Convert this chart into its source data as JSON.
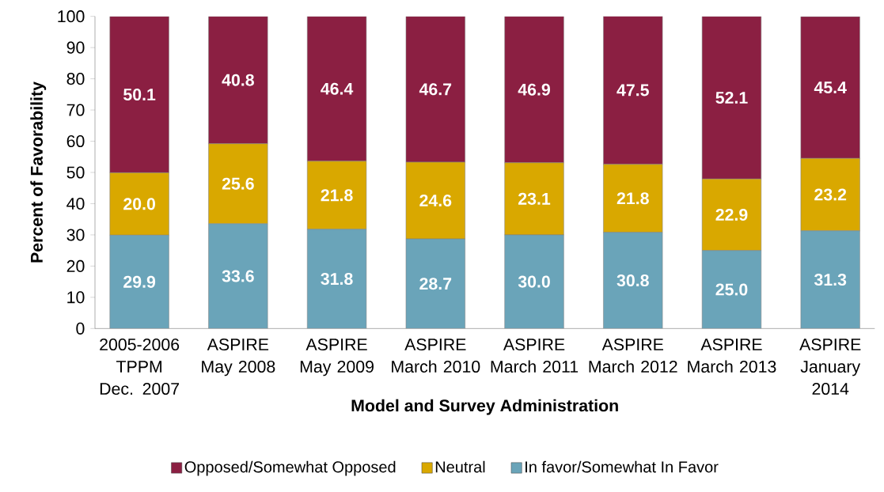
{
  "chart_data": {
    "type": "bar",
    "stacked": true,
    "xlabel": "Model and Survey Administration",
    "ylabel": "Percent of Favorability",
    "categories": [
      "2005-2006 TPPM Dec. 2007",
      "ASPIRE May 2008",
      "ASPIRE May 2009",
      "ASPIRE March 2010",
      "ASPIRE March 2011",
      "ASPIRE March 2012",
      "ASPIRE March 2013",
      "ASPIRE January 2014"
    ],
    "series": [
      {
        "name": "In favor/Somewhat In Favor",
        "color": "#6aa4b9",
        "values": [
          29.9,
          33.6,
          31.8,
          28.7,
          30.0,
          30.8,
          25.0,
          31.3
        ],
        "value_labels": [
          "29.9",
          "33.6",
          "31.8",
          "28.7",
          "30.0",
          "30.8",
          "25.0",
          "31.3"
        ]
      },
      {
        "name": "Neutral",
        "color": "#d9a800",
        "values": [
          20.0,
          25.6,
          21.8,
          24.6,
          23.1,
          21.8,
          22.9,
          23.2
        ],
        "value_labels": [
          "20.0",
          "25.6",
          "21.8",
          "24.6",
          "23.1",
          "21.8",
          "22.9",
          "23.2"
        ]
      },
      {
        "name": "Opposed/Somewhat Opposed",
        "color": "#8b1f42",
        "values": [
          50.1,
          40.8,
          46.4,
          46.7,
          46.9,
          47.5,
          52.1,
          45.4
        ],
        "value_labels": [
          "50.1",
          "40.8",
          "46.4",
          "46.7",
          "46.9",
          "47.5",
          "52.1",
          "45.4"
        ]
      }
    ],
    "ylim": [
      0,
      100
    ],
    "yticks": [
      0,
      10,
      20,
      30,
      40,
      50,
      60,
      70,
      80,
      90,
      100
    ],
    "legend": "bottom",
    "grid": false
  }
}
